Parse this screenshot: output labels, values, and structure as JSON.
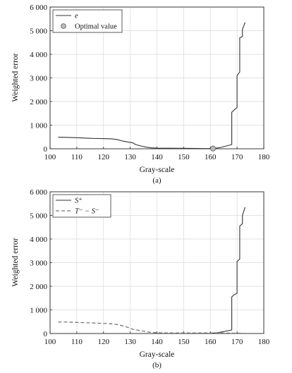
{
  "chart_data": [
    {
      "type": "line",
      "xlabel": "Gray-scale",
      "ylabel": "Weighted error",
      "caption": "(a)",
      "xlim": [
        100,
        180
      ],
      "ylim": [
        0,
        6000
      ],
      "xticks": [
        100,
        110,
        120,
        130,
        140,
        150,
        160,
        170,
        180
      ],
      "xtick_labels": [
        "100",
        "110",
        "120",
        "130",
        "140",
        "150",
        "160",
        "170",
        "180"
      ],
      "yticks": [
        0,
        1000,
        2000,
        3000,
        4000,
        5000,
        6000
      ],
      "ytick_labels": [
        "0",
        "1 000",
        "2 000",
        "3 000",
        "4 000",
        "5 000",
        "6 000"
      ],
      "grid": true,
      "legend": "top-left",
      "series": [
        {
          "name": "e",
          "style": "solid",
          "color": "#333333",
          "x": [
            103,
            106,
            110,
            113,
            116,
            120,
            123,
            125,
            127,
            129,
            131,
            132,
            134,
            136,
            138,
            140,
            145,
            150,
            155,
            158,
            161,
            164,
            168,
            168,
            169,
            170,
            170,
            171,
            171,
            172,
            172,
            173
          ],
          "y": [
            490,
            485,
            470,
            455,
            440,
            430,
            420,
            395,
            330,
            290,
            250,
            180,
            120,
            70,
            40,
            30,
            25,
            20,
            15,
            10,
            10,
            60,
            180,
            1550,
            1650,
            1750,
            3100,
            3250,
            4700,
            4750,
            5050,
            5350
          ]
        },
        {
          "name": "Optimal value",
          "style": "marker",
          "color": "#999999",
          "x": [
            161
          ],
          "y": [
            10
          ]
        }
      ]
    },
    {
      "type": "line",
      "xlabel": "Gray-scale",
      "ylabel": "Weighted error",
      "caption": "(b)",
      "xlim": [
        100,
        180
      ],
      "ylim": [
        0,
        6000
      ],
      "xticks": [
        100,
        110,
        120,
        130,
        140,
        150,
        160,
        170,
        180
      ],
      "xtick_labels": [
        "100",
        "110",
        "120",
        "130",
        "140",
        "150",
        "160",
        "170",
        "180"
      ],
      "yticks": [
        0,
        1000,
        2000,
        3000,
        4000,
        5000,
        6000
      ],
      "ytick_labels": [
        "0",
        "1 000",
        "2 000",
        "3 000",
        "4 000",
        "5 000",
        "6 000"
      ],
      "grid": true,
      "legend": "top-left",
      "series": [
        {
          "name": "S⁺",
          "style": "solid",
          "color": "#333333",
          "x": [
            103,
            120,
            140,
            155,
            160,
            163,
            168,
            168,
            169,
            170,
            170,
            171,
            171,
            172,
            172,
            173
          ],
          "y": [
            0,
            0,
            0,
            0,
            5,
            40,
            150,
            1550,
            1650,
            1700,
            3050,
            3150,
            4550,
            4650,
            5000,
            5350
          ]
        },
        {
          "name": "T⁻ − S⁻",
          "style": "dashed",
          "color": "#777777",
          "x": [
            103,
            106,
            110,
            115,
            120,
            123,
            125,
            128,
            131,
            134,
            137,
            140,
            145,
            150,
            155,
            160,
            165,
            170,
            173
          ],
          "y": [
            490,
            490,
            470,
            450,
            430,
            410,
            380,
            300,
            180,
            120,
            60,
            30,
            25,
            25,
            25,
            25,
            20,
            15,
            10
          ]
        }
      ]
    }
  ]
}
